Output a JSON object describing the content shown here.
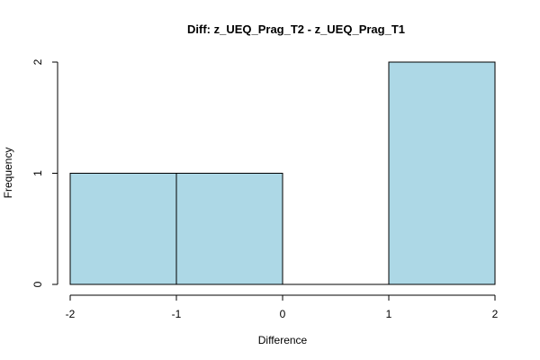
{
  "chart_data": {
    "type": "bar",
    "title": "Diff: z_UEQ_Prag_T2 - z_UEQ_Prag_T1",
    "xlabel": "Difference",
    "ylabel": "Frequency",
    "bins": [
      {
        "x0": -2,
        "x1": -1,
        "count": 1
      },
      {
        "x0": -1,
        "x1": 0,
        "count": 1
      },
      {
        "x0": 0,
        "x1": 1,
        "count": 0
      },
      {
        "x0": 1,
        "x1": 2,
        "count": 2
      }
    ],
    "xlim": [
      -2,
      2
    ],
    "ylim": [
      0,
      2
    ],
    "x_ticks": [
      "-2",
      "-1",
      "0",
      "1",
      "2"
    ],
    "y_ticks": [
      "0",
      "1",
      "2"
    ],
    "bar_color": "#add8e6",
    "border_color": "#000000",
    "grid": false,
    "legend": "none"
  }
}
